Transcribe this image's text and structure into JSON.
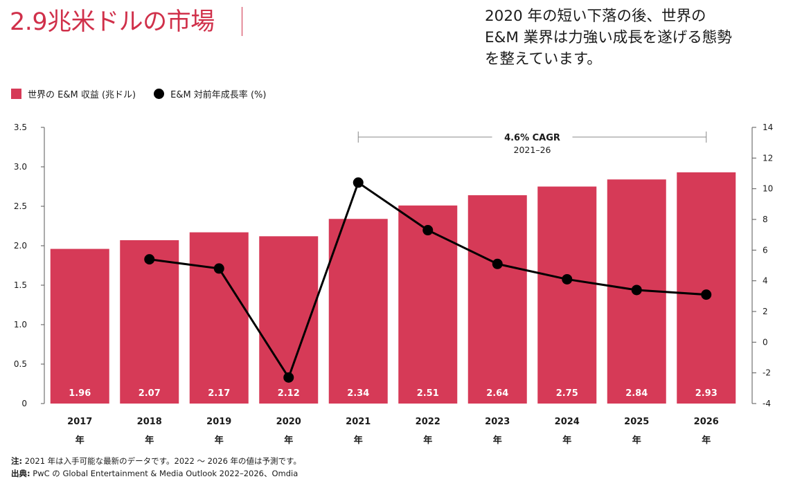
{
  "header": {
    "title": "2.9兆米ドルの市場",
    "subtitle_lines": [
      "2020 年の短い下落の後、世界の",
      "E&M 業界は力強い成長を遂げる態勢",
      "を整えています。"
    ]
  },
  "legend": {
    "bar_label": "世界の E&M 収益 (兆ドル)",
    "line_label": "E&M 対前年成長率 (%)"
  },
  "annotation": {
    "cagr": "4.6% CAGR",
    "period": "2021–26"
  },
  "footer": {
    "note_label": "注:",
    "note_text": " 2021 年は入手可能な最新のデータです。2022 ～ 2026 年の値は予測です。",
    "source_label": "出典:",
    "source_text": " PwC の Global Entertainment & Media Outlook 2022–2026、Omdia"
  },
  "colors": {
    "bar": "#d63a57",
    "line": "#000000",
    "title": "#d0304a",
    "bar_label": "#ffffff"
  },
  "chart_data": {
    "type": "bar",
    "categories": [
      "2017",
      "2018",
      "2019",
      "2020",
      "2021",
      "2022",
      "2023",
      "2024",
      "2025",
      "2026"
    ],
    "category_suffix": "年",
    "series": [
      {
        "name": "世界の E&M 収益 (兆ドル)",
        "type": "bar",
        "axis": "left",
        "values": [
          1.96,
          2.07,
          2.17,
          2.12,
          2.34,
          2.51,
          2.64,
          2.75,
          2.84,
          2.93
        ],
        "labels": [
          "1.96",
          "2.07",
          "2.17",
          "2.12",
          "2.34",
          "2.51",
          "2.64",
          "2.75",
          "2.84",
          "2.93"
        ]
      },
      {
        "name": "E&M 対前年成長率 (%)",
        "type": "line",
        "axis": "right",
        "values": [
          null,
          5.4,
          4.8,
          -2.3,
          10.4,
          7.3,
          5.1,
          4.1,
          3.4,
          3.1
        ]
      }
    ],
    "y_left": {
      "ylim": [
        0,
        3.5
      ],
      "ticks": [
        "0",
        "0.5",
        "1.0",
        "1.5",
        "2.0",
        "2.5",
        "3.0",
        "3.5"
      ]
    },
    "y_right": {
      "ylim": [
        -4,
        14
      ],
      "ticks": [
        "-4",
        "-2",
        "0",
        "2",
        "4",
        "6",
        "8",
        "10",
        "12",
        "14"
      ]
    },
    "grid": false,
    "legend_position": "top-left"
  }
}
